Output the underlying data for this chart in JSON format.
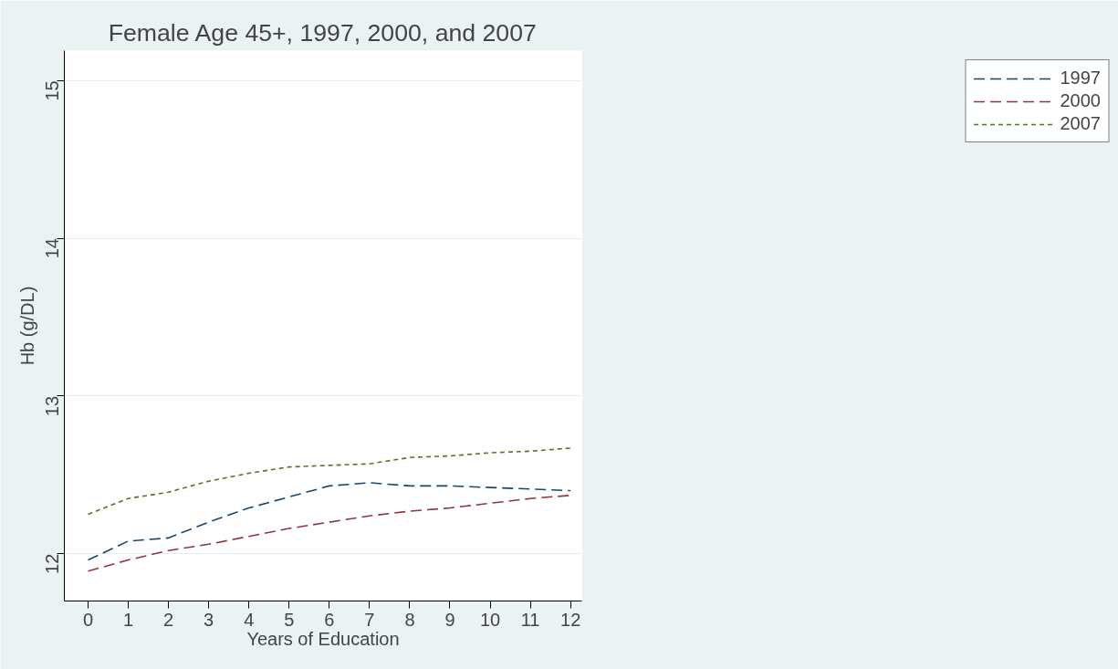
{
  "chart_data": {
    "type": "line",
    "title": "Female Age 45+, 1997, 2000, and 2007",
    "xlabel": "Years of Education",
    "ylabel": "Hb (g/DL)",
    "x": [
      0,
      1,
      2,
      3,
      4,
      5,
      6,
      7,
      8,
      9,
      10,
      11,
      12
    ],
    "series": [
      {
        "name": "1997",
        "color": "#1a476f",
        "line_style": "dashed",
        "values": [
          11.96,
          12.08,
          12.1,
          12.2,
          12.29,
          12.36,
          12.43,
          12.45,
          12.43,
          12.43,
          12.42,
          12.41,
          12.4
        ]
      },
      {
        "name": "2000",
        "color": "#90353b",
        "line_style": "dashed",
        "values": [
          11.89,
          11.96,
          12.02,
          12.06,
          12.11,
          12.16,
          12.2,
          12.24,
          12.27,
          12.29,
          12.32,
          12.35,
          12.37
        ]
      },
      {
        "name": "2007",
        "color": "#55752f",
        "line_style": "dotted",
        "values": [
          12.25,
          12.35,
          12.39,
          12.46,
          12.51,
          12.55,
          12.56,
          12.57,
          12.61,
          12.62,
          12.64,
          12.65,
          12.67
        ]
      }
    ],
    "xlim": [
      -0.59,
      12.28
    ],
    "xticks": [
      0,
      1,
      2,
      3,
      4,
      5,
      6,
      7,
      8,
      9,
      10,
      11,
      12
    ],
    "ylim": [
      11.7,
      15.19
    ],
    "yticks": [
      12,
      13,
      14,
      15
    ],
    "grid": "y",
    "legend": "right",
    "marker": "none"
  }
}
